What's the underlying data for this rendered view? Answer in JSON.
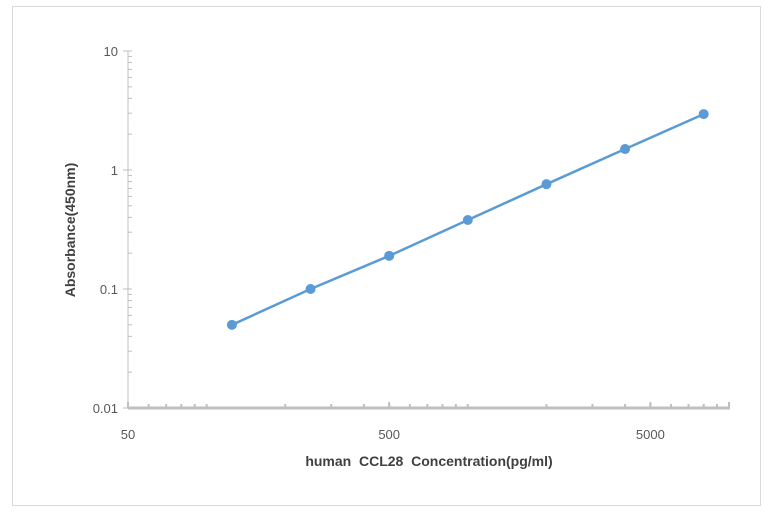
{
  "chart_data": {
    "type": "line",
    "title": "",
    "xlabel": "human  CCL28  Concentration(pg/ml)",
    "ylabel": "Absorbance(450nm)",
    "x_scale": "log",
    "y_scale": "log",
    "xlim": [
      50,
      10000
    ],
    "ylim": [
      0.01,
      10
    ],
    "x_tick_labels": [
      "50",
      "500",
      "5000"
    ],
    "y_tick_labels": [
      "0.01",
      "0.1",
      "1",
      "10"
    ],
    "grid": false,
    "series": [
      {
        "x": [
          125,
          250,
          500,
          1000,
          2000,
          4000,
          8000
        ],
        "y": [
          0.05,
          0.1,
          0.19,
          0.38,
          0.76,
          1.5,
          2.95
        ],
        "color": "#5b9bd5",
        "markers": true
      }
    ]
  }
}
